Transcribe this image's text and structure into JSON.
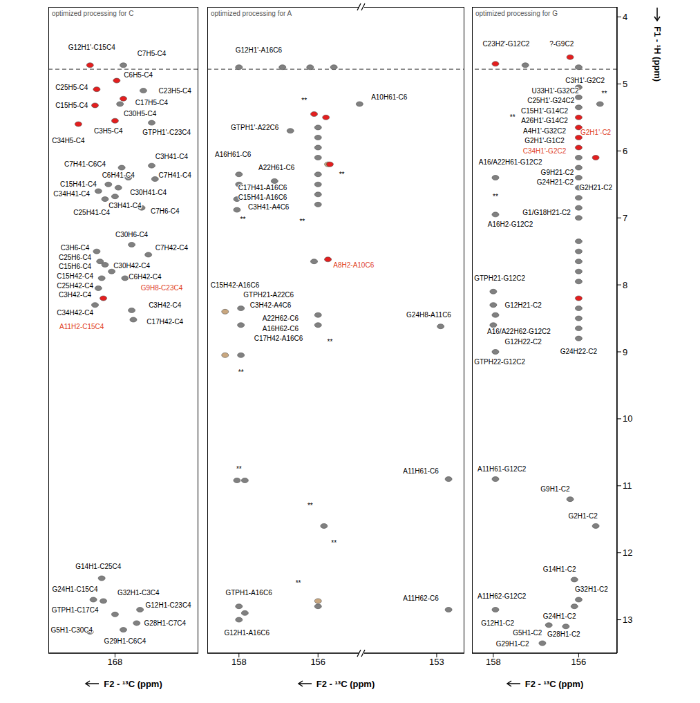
{
  "chart_data": [
    {
      "type": "scatter",
      "title": "optimized processing for C",
      "x_label": "F2 - ¹³C (ppm)",
      "xlim": [
        170,
        165.5
      ],
      "xticks": [
        168
      ],
      "ylim": [
        13.5,
        3.85
      ],
      "tick_labels": "x",
      "hline": 4.78,
      "series": [
        {
          "color": "#808080",
          "x": [
            167.75,
            167.15,
            167.85,
            166.9,
            166.9,
            167.8,
            166.8,
            167.6,
            168.2,
            168.5,
            167.9,
            168.0,
            168.3,
            167.2,
            167.5,
            167.0,
            168.55,
            168.45,
            168.3,
            168.1,
            168.4,
            168.5,
            167.7,
            168.6,
            167.5,
            167.45,
            168.4,
            168.65,
            168.35,
            168.0,
            167.25,
            167.35,
            168.75,
            167.75
          ],
          "y": [
            4.72,
            5.1,
            5.3,
            5.58,
            6.22,
            6.25,
            6.42,
            6.4,
            6.5,
            6.6,
            6.55,
            6.68,
            6.72,
            6.85,
            7.4,
            7.55,
            7.5,
            7.65,
            7.7,
            7.8,
            7.9,
            8.05,
            7.9,
            8.3,
            8.38,
            8.52,
            12.38,
            12.7,
            12.72,
            12.92,
            12.85,
            13.05,
            13.18,
            13.15
          ]
        },
        {
          "color": "#e41e1e",
          "x": [
            168.75,
            167.95,
            168.55,
            167.75,
            168.6,
            168.0,
            169.1,
            168.35
          ],
          "y": [
            4.72,
            4.95,
            5.08,
            5.22,
            5.32,
            5.55,
            5.6,
            8.2
          ]
        }
      ],
      "annotations": [
        {
          "text": "G12H1'-C15C4",
          "x": 168.7,
          "y": 4.45
        },
        {
          "text": "C7H5-C4",
          "x": 166.9,
          "y": 4.55
        },
        {
          "text": "C6H5-C4",
          "x": 167.3,
          "y": 4.87
        },
        {
          "text": "C25H5-C4",
          "x": 169.3,
          "y": 5.05
        },
        {
          "text": "C23H5-C4",
          "x": 166.2,
          "y": 5.1
        },
        {
          "text": "C17H5-C4",
          "x": 166.9,
          "y": 5.28
        },
        {
          "text": "C30H5-C4",
          "x": 167.25,
          "y": 5.44
        },
        {
          "text": "C15H5-C4",
          "x": 169.3,
          "y": 5.32
        },
        {
          "text": "C3H5-C4",
          "x": 168.2,
          "y": 5.7
        },
        {
          "text": "C34H5-C4",
          "x": 169.4,
          "y": 5.85
        },
        {
          "text": "GTPH1'-C23C4",
          "x": 166.45,
          "y": 5.72
        },
        {
          "text": "C3H41-C4",
          "x": 166.3,
          "y": 6.08
        },
        {
          "text": "C7H41-C6C4",
          "x": 168.9,
          "y": 6.2
        },
        {
          "text": "C7H41-C4",
          "x": 166.2,
          "y": 6.36
        },
        {
          "text": "C6H41-C4",
          "x": 167.9,
          "y": 6.36
        },
        {
          "text": "C15H41-C4",
          "x": 169.1,
          "y": 6.5
        },
        {
          "text": "C34H41-C4",
          "x": 169.3,
          "y": 6.64
        },
        {
          "text": "C30H41-C4",
          "x": 167.0,
          "y": 6.62
        },
        {
          "text": "C3H41-C4",
          "x": 167.7,
          "y": 6.82
        },
        {
          "text": "C25H41-C4",
          "x": 168.7,
          "y": 6.92
        },
        {
          "text": "C7H6-C4",
          "x": 166.5,
          "y": 6.9
        },
        {
          "text": "C30H6-C4",
          "x": 167.5,
          "y": 7.25
        },
        {
          "text": "C7H42-C4",
          "x": 166.3,
          "y": 7.45
        },
        {
          "text": "C3H6-C4",
          "x": 169.2,
          "y": 7.45
        },
        {
          "text": "C25H6-C4",
          "x": 169.2,
          "y": 7.59
        },
        {
          "text": "C15H6-C4",
          "x": 169.2,
          "y": 7.73
        },
        {
          "text": "C15H42-C4",
          "x": 169.2,
          "y": 7.87
        },
        {
          "text": "C25H42-C4",
          "x": 169.2,
          "y": 8.01
        },
        {
          "text": "C3H42-C4",
          "x": 169.2,
          "y": 8.15
        },
        {
          "text": "C34H42-C4",
          "x": 169.2,
          "y": 8.42
        },
        {
          "text": "A11H2-C15C4",
          "x": 169.0,
          "y": 8.62,
          "color": "#e0401e"
        },
        {
          "text": "C30H42-C4",
          "x": 167.5,
          "y": 7.72
        },
        {
          "text": "C6H42-C4",
          "x": 167.1,
          "y": 7.88
        },
        {
          "text": "G9H8-C23C4",
          "x": 166.6,
          "y": 8.05,
          "color": "#e0401e"
        },
        {
          "text": "C3H42-C4",
          "x": 166.5,
          "y": 8.3
        },
        {
          "text": "C17H42-C4",
          "x": 166.5,
          "y": 8.55
        },
        {
          "text": "G14H1-C25C4",
          "x": 168.5,
          "y": 12.2
        },
        {
          "text": "G24H1-C15C4",
          "x": 169.2,
          "y": 12.55
        },
        {
          "text": "G32H1-C3C4",
          "x": 167.3,
          "y": 12.6
        },
        {
          "text": "GTPH1-C17C4",
          "x": 169.2,
          "y": 12.85
        },
        {
          "text": "G12H1-C23C4",
          "x": 166.4,
          "y": 12.78
        },
        {
          "text": "G28H1-C7C4",
          "x": 166.5,
          "y": 13.05
        },
        {
          "text": "G5H1-C30C4",
          "x": 169.3,
          "y": 13.15
        },
        {
          "text": "G29H1-C6C4",
          "x": 167.7,
          "y": 13.32
        }
      ]
    },
    {
      "type": "scatter",
      "title": "optimized processing for A",
      "x_label": "F2 - ¹³C (ppm)",
      "xlim": [
        158.8,
        152.3
      ],
      "xticks": [
        158,
        156,
        153
      ],
      "ylim": [
        13.5,
        3.85
      ],
      "tick_labels": "x",
      "hline": 4.78,
      "series": [
        {
          "color": "#c9a77f",
          "x": [
            155.75,
            158.35,
            158.35,
            156.0
          ],
          "y": [
            6.2,
            8.4,
            9.05,
            12.72
          ]
        },
        {
          "color": "#808080",
          "x": [
            158.0,
            156.9,
            156.2,
            155.6,
            154.95,
            156.0,
            156.0,
            156.0,
            156.0,
            156.0,
            156.0,
            156.0,
            156.0,
            156.7,
            158.0,
            157.1,
            158.0,
            158.05,
            158.05,
            156.1,
            157.95,
            157.95,
            157.95,
            156.0,
            156.0,
            152.9,
            158.05,
            157.85,
            152.7,
            155.85,
            156.0,
            152.7,
            158.0,
            157.85,
            158.0
          ],
          "y": [
            4.75,
            4.75,
            4.75,
            4.75,
            5.3,
            5.65,
            5.8,
            5.95,
            6.1,
            6.35,
            6.5,
            6.65,
            6.8,
            5.7,
            6.35,
            6.45,
            6.5,
            6.72,
            6.88,
            7.65,
            8.35,
            8.6,
            9.05,
            8.45,
            8.6,
            8.62,
            10.92,
            10.92,
            10.9,
            11.6,
            12.8,
            12.85,
            12.8,
            12.9,
            13.0
          ]
        },
        {
          "color": "#e41e1e",
          "x": [
            156.1,
            155.8,
            155.7,
            155.75
          ],
          "y": [
            5.45,
            5.5,
            6.2,
            7.62
          ]
        }
      ],
      "annotations": [
        {
          "text": "G12H1'-A16C6",
          "x": 157.5,
          "y": 4.5
        },
        {
          "text": "A10H61-C6",
          "x": 154.2,
          "y": 5.2
        },
        {
          "text": "**",
          "x": 156.35,
          "y": 5.25
        },
        {
          "text": "GTPH1'-A22C6",
          "x": 157.6,
          "y": 5.65
        },
        {
          "text": "A16H61-C6",
          "x": 158.15,
          "y": 6.05
        },
        {
          "text": "A22H61-C6",
          "x": 157.05,
          "y": 6.25
        },
        {
          "text": "**",
          "x": 155.4,
          "y": 6.35
        },
        {
          "text": "C17H41-A16C6",
          "x": 157.4,
          "y": 6.55
        },
        {
          "text": "C15H41-A16C6",
          "x": 157.4,
          "y": 6.69
        },
        {
          "text": "C3H41-A4C6",
          "x": 157.25,
          "y": 6.84
        },
        {
          "text": "**",
          "x": 157.9,
          "y": 7.02
        },
        {
          "text": "**",
          "x": 156.4,
          "y": 7.05
        },
        {
          "text": "A8H2-A10C6",
          "x": 155.1,
          "y": 7.7,
          "color": "#e0401e"
        },
        {
          "text": "C15H42-A16C6",
          "x": 158.1,
          "y": 8.0
        },
        {
          "text": "GTPH21-A22C6",
          "x": 157.25,
          "y": 8.15
        },
        {
          "text": "C3H42-A4C6",
          "x": 157.2,
          "y": 8.3
        },
        {
          "text": "A22H62-C6",
          "x": 156.95,
          "y": 8.5
        },
        {
          "text": "A16H62-C6",
          "x": 156.95,
          "y": 8.65
        },
        {
          "text": "C17H42-A16C6",
          "x": 157.0,
          "y": 8.8
        },
        {
          "text": "**",
          "x": 155.7,
          "y": 8.85
        },
        {
          "text": "**",
          "x": 157.95,
          "y": 9.3
        },
        {
          "text": "G24H8-A11C6",
          "x": 153.2,
          "y": 8.45
        },
        {
          "text": "**",
          "x": 158.0,
          "y": 10.75
        },
        {
          "text": "A11H61-C6",
          "x": 153.4,
          "y": 10.78
        },
        {
          "text": "**",
          "x": 156.2,
          "y": 11.3
        },
        {
          "text": "**",
          "x": 155.6,
          "y": 11.85
        },
        {
          "text": "**",
          "x": 156.5,
          "y": 12.45
        },
        {
          "text": "A11H62-C6",
          "x": 153.4,
          "y": 12.68
        },
        {
          "text": "GTPH1-A16C6",
          "x": 157.75,
          "y": 12.6
        },
        {
          "text": "G12H1-A16C6",
          "x": 157.8,
          "y": 13.2
        }
      ]
    },
    {
      "type": "scatter",
      "title": "optimized processing for G",
      "x_label": "F2 - ¹³C (ppm)",
      "y_label": "F1 - ¹H (ppm)",
      "xlim": [
        158.5,
        155.1
      ],
      "xticks": [
        158,
        156
      ],
      "ylim": [
        13.5,
        3.85
      ],
      "yticks": [
        4,
        5,
        6,
        7,
        8,
        9,
        10,
        11,
        12,
        13
      ],
      "hline": 4.78,
      "series": [
        {
          "color": "#808080",
          "x": [
            157.25,
            156.0,
            155.5,
            156.0,
            156.0,
            156.0,
            156.0,
            156.0,
            156.0,
            156.0,
            156.0,
            156.0,
            156.0,
            157.95,
            157.95,
            158.0,
            158.0,
            157.95,
            158.0,
            157.95,
            156.0,
            156.0,
            156.0,
            156.0,
            156.0,
            156.0,
            156.0,
            156.0,
            156.0,
            157.95,
            156.2,
            155.6,
            156.1,
            157.95,
            156.0,
            156.1,
            156.3,
            156.7,
            156.85
          ],
          "y": [
            4.72,
            4.75,
            5.3,
            5.05,
            5.2,
            5.35,
            6.1,
            6.25,
            6.4,
            6.55,
            6.7,
            6.85,
            7.0,
            6.4,
            6.95,
            8.1,
            8.3,
            8.45,
            8.6,
            9.0,
            7.35,
            7.5,
            7.65,
            7.8,
            7.95,
            8.35,
            8.5,
            8.65,
            8.8,
            10.9,
            11.2,
            11.6,
            12.4,
            12.85,
            12.7,
            12.8,
            13.1,
            13.08,
            13.35
          ]
        },
        {
          "color": "#e41e1e",
          "x": [
            157.95,
            156.2,
            156.0,
            156.0,
            156.0,
            156.0,
            155.6,
            156.0
          ],
          "y": [
            4.7,
            4.6,
            5.5,
            5.65,
            5.8,
            5.95,
            6.1,
            8.2
          ]
        }
      ],
      "annotations": [
        {
          "text": "C23H2'-G12C2",
          "x": 157.7,
          "y": 4.4
        },
        {
          "text": "?-G9C2",
          "x": 156.4,
          "y": 4.4
        },
        {
          "text": "C3H1'-G2C2",
          "x": 155.85,
          "y": 4.95
        },
        {
          "text": "U33H1'-G32C2",
          "x": 156.55,
          "y": 5.1
        },
        {
          "text": "C25H1'-G24C2",
          "x": 156.65,
          "y": 5.25
        },
        {
          "text": "C15H1'-G14C2",
          "x": 156.8,
          "y": 5.4
        },
        {
          "text": "A26H1'-G14C2",
          "x": 156.8,
          "y": 5.55
        },
        {
          "text": "A4H1'-G32C2",
          "x": 156.8,
          "y": 5.7
        },
        {
          "text": "G2H1'-G1C2",
          "x": 156.8,
          "y": 5.85
        },
        {
          "text": "C34H1'-G2C2",
          "x": 156.8,
          "y": 6.0,
          "color": "#e0401e"
        },
        {
          "text": "G2H1'-C2",
          "x": 155.6,
          "y": 5.72,
          "color": "#e0401e"
        },
        {
          "text": "**",
          "x": 155.4,
          "y": 5.15
        },
        {
          "text": "**",
          "x": 157.55,
          "y": 5.5
        },
        {
          "text": "A16/A22H61-G12C2",
          "x": 157.6,
          "y": 6.17
        },
        {
          "text": "G9H21-C2",
          "x": 156.5,
          "y": 6.32
        },
        {
          "text": "G24H21-C2",
          "x": 156.55,
          "y": 6.47
        },
        {
          "text": "G2H21-C2",
          "x": 155.6,
          "y": 6.55
        },
        {
          "text": "**",
          "x": 157.95,
          "y": 6.68
        },
        {
          "text": "A16H2-G12C2",
          "x": 157.6,
          "y": 7.1
        },
        {
          "text": "G1/G18H21-C2",
          "x": 156.75,
          "y": 6.92
        },
        {
          "text": "GTPH21-G12C2",
          "x": 157.85,
          "y": 7.9
        },
        {
          "text": "G12H21-C2",
          "x": 157.3,
          "y": 8.3
        },
        {
          "text": "A16/A22H62-G12C2",
          "x": 157.4,
          "y": 8.7
        },
        {
          "text": "G12H22-C2",
          "x": 157.3,
          "y": 8.85
        },
        {
          "text": "GTPH22-G12C2",
          "x": 157.85,
          "y": 9.15
        },
        {
          "text": "G24H22-C2",
          "x": 156.0,
          "y": 9.0
        },
        {
          "text": "A11H61-G12C2",
          "x": 157.8,
          "y": 10.75
        },
        {
          "text": "G9H1-C2",
          "x": 156.55,
          "y": 11.05
        },
        {
          "text": "G2H1-C2",
          "x": 155.9,
          "y": 11.45
        },
        {
          "text": "G14H1-C2",
          "x": 156.45,
          "y": 12.25
        },
        {
          "text": "A11H62-G12C2",
          "x": 157.8,
          "y": 12.65
        },
        {
          "text": "G32H1-C2",
          "x": 155.7,
          "y": 12.55
        },
        {
          "text": "G24H1-C2",
          "x": 156.45,
          "y": 12.95
        },
        {
          "text": "G12H1-C2",
          "x": 157.9,
          "y": 13.05
        },
        {
          "text": "G5H1-C2",
          "x": 157.2,
          "y": 13.2
        },
        {
          "text": "G28H1-C2",
          "x": 156.35,
          "y": 13.22
        },
        {
          "text": "G29H1-C2",
          "x": 157.55,
          "y": 13.36
        }
      ]
    }
  ]
}
